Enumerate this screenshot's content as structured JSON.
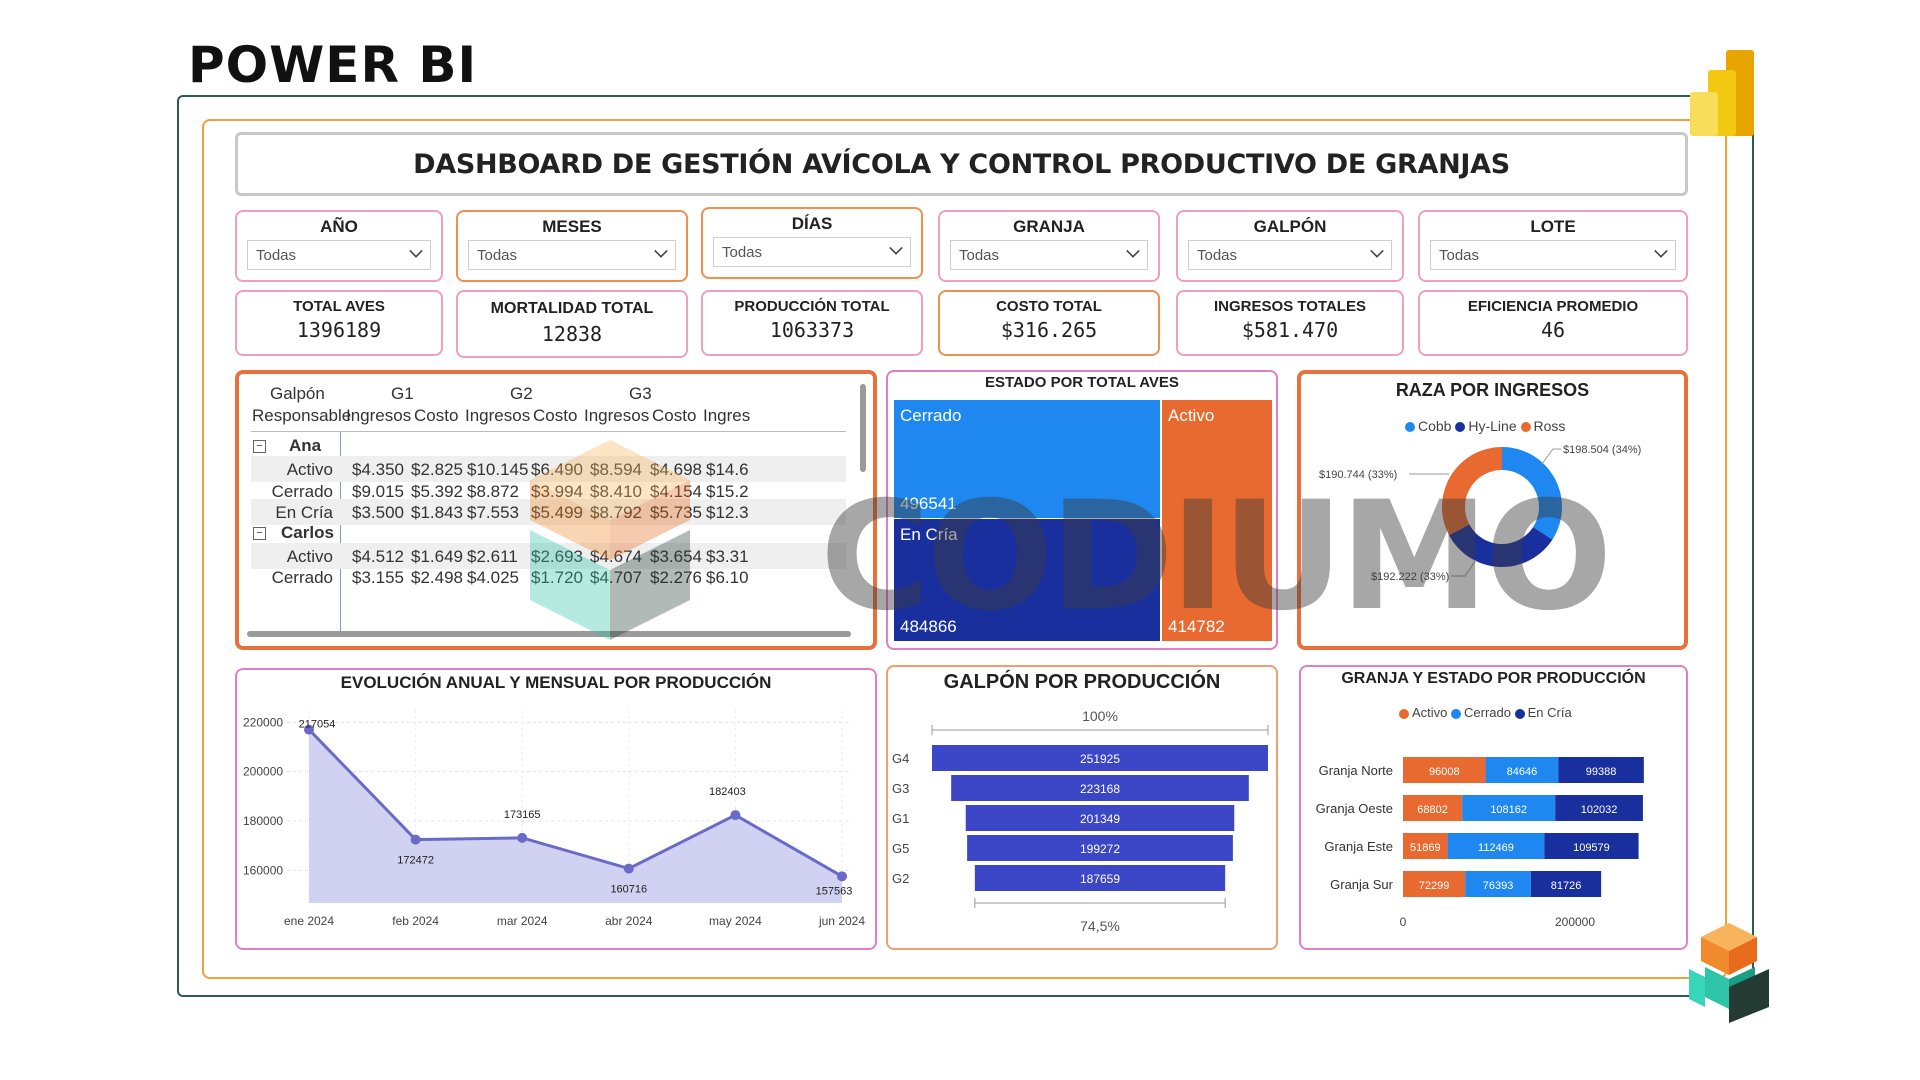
{
  "header": {
    "app_label": "POWER BI"
  },
  "dashboard_title": "DASHBOARD DE GESTIÓN AVÍCOLA Y CONTROL PRODUCTIVO DE GRANJAS",
  "slicers": [
    {
      "title": "AÑO",
      "value": "Todas"
    },
    {
      "title": "MESES",
      "value": "Todas"
    },
    {
      "title": "DÍAS",
      "value": "Todas"
    },
    {
      "title": "GRANJA",
      "value": "Todas"
    },
    {
      "title": "GALPÓN",
      "value": "Todas"
    },
    {
      "title": "LOTE",
      "value": "Todas"
    }
  ],
  "kpis": [
    {
      "title": "TOTAL AVES",
      "value": "1396189"
    },
    {
      "title": "MORTALIDAD TOTAL",
      "value": "12838"
    },
    {
      "title": "PRODUCCIÓN TOTAL",
      "value": "1063373"
    },
    {
      "title": "COSTO TOTAL",
      "value": "$316.265"
    },
    {
      "title": "INGRESOS TOTALES",
      "value": "$581.470"
    },
    {
      "title": "EFICIENCIA PROMEDIO",
      "value": "46"
    }
  ],
  "matrix": {
    "row_header_1": "Galpón",
    "row_header_2": "Responsable",
    "groups": [
      "G1",
      "G2",
      "G3"
    ],
    "sub_headers": [
      "Ingresos",
      "Costo",
      "Ingresos",
      "Costo",
      "Ingresos",
      "Costo",
      "Ingres"
    ],
    "sections": [
      {
        "name": "Ana",
        "expander": "⊟",
        "rows": [
          {
            "label": "Activo",
            "values": [
              "$4.350",
              "$2.825",
              "$10.145",
              "$6.490",
              "$8.594",
              "$4.698",
              "$14.6"
            ]
          },
          {
            "label": "Cerrado",
            "values": [
              "$9.015",
              "$5.392",
              "$8.872",
              "$3.994",
              "$8.410",
              "$4.154",
              "$15.2"
            ]
          },
          {
            "label": "En Cría",
            "values": [
              "$3.500",
              "$1.843",
              "$7.553",
              "$5.499",
              "$8.792",
              "$5.735",
              "$12.3"
            ]
          }
        ]
      },
      {
        "name": "Carlos",
        "expander": "⊟",
        "rows": [
          {
            "label": "Activo",
            "values": [
              "$4.512",
              "$1.649",
              "$2.611",
              "$2.693",
              "$4.674",
              "$3.654",
              "$3.31"
            ]
          },
          {
            "label": "Cerrado",
            "values": [
              "$3.155",
              "$2.498",
              "$4.025",
              "$1.720",
              "$4.707",
              "$2.276",
              "$6.10"
            ]
          }
        ]
      }
    ]
  },
  "treemap": {
    "title": "ESTADO POR TOTAL AVES",
    "items": [
      {
        "label": "Cerrado",
        "value": "496541",
        "color": "#1e88f0"
      },
      {
        "label": "En Cría",
        "value": "484866",
        "color": "#1a2f9e"
      },
      {
        "label": "Activo",
        "value": "414782",
        "color": "#e86a30"
      }
    ]
  },
  "donut": {
    "title": "RAZA POR INGRESOS",
    "legend": [
      {
        "label": "Cobb",
        "color": "#1e88f0"
      },
      {
        "label": "Hy-Line",
        "color": "#1a2f9e"
      },
      {
        "label": "Ross",
        "color": "#e86a30"
      }
    ],
    "labels": [
      "$198.504 (34%)",
      "$190.744 (33%)",
      "$192.222 (33%)"
    ]
  },
  "line": {
    "title": "EVOLUCIÓN ANUAL Y MENSUAL POR PRODUCCIÓN",
    "y_ticks": [
      "220000",
      "200000",
      "180000",
      "160000"
    ],
    "x_labels": [
      "ene 2024",
      "feb 2024",
      "mar 2024",
      "abr 2024",
      "may 2024",
      "jun 2024"
    ],
    "data_labels": [
      "217054",
      "172472",
      "173165",
      "160716",
      "182403",
      "157563"
    ]
  },
  "funnel": {
    "title": "GALPÓN POR PRODUCCIÓN",
    "top_pct": "100%",
    "bottom_pct": "74,5%",
    "categories": [
      "G4",
      "G3",
      "G1",
      "G5",
      "G2"
    ],
    "labels": [
      "251925",
      "223168",
      "201349",
      "199272",
      "187659"
    ],
    "color": "#3b47c7"
  },
  "stacked": {
    "title": "GRANJA Y ESTADO POR PRODUCCIÓN",
    "legend": [
      {
        "label": "Activo",
        "color": "#e86a30"
      },
      {
        "label": "Cerrado",
        "color": "#1e88f0"
      },
      {
        "label": "En Cría",
        "color": "#1a2f9e"
      }
    ],
    "categories": [
      "Granja Norte",
      "Granja Oeste",
      "Granja Este",
      "Granja Sur"
    ],
    "x_ticks": [
      "0",
      "200000"
    ]
  },
  "watermark": "CODIUMO",
  "chart_data": [
    {
      "type": "line",
      "title": "EVOLUCIÓN ANUAL Y MENSUAL POR PRODUCCIÓN",
      "x": [
        "ene 2024",
        "feb 2024",
        "mar 2024",
        "abr 2024",
        "may 2024",
        "jun 2024"
      ],
      "values": [
        217054,
        172472,
        173165,
        160716,
        182403,
        157563
      ],
      "ylim": [
        150000,
        225000
      ]
    },
    {
      "type": "bar",
      "title": "GALPÓN POR PRODUCCIÓN",
      "categories": [
        "G4",
        "G3",
        "G1",
        "G5",
        "G2"
      ],
      "values": [
        251925,
        223168,
        201349,
        199272,
        187659
      ]
    },
    {
      "type": "bar",
      "title": "GRANJA Y ESTADO POR PRODUCCIÓN",
      "categories": [
        "Granja Norte",
        "Granja Oeste",
        "Granja Este",
        "Granja Sur"
      ],
      "series": [
        {
          "name": "Activo",
          "values": [
            96008,
            68802,
            51869,
            72299
          ]
        },
        {
          "name": "Cerrado",
          "values": [
            84646,
            108162,
            112469,
            76393
          ]
        },
        {
          "name": "En Cría",
          "values": [
            99388,
            102032,
            109579,
            81726
          ]
        }
      ]
    },
    {
      "type": "pie",
      "title": "RAZA POR INGRESOS",
      "categories": [
        "Cobb",
        "Hy-Line",
        "Ross"
      ],
      "values": [
        198504,
        192222,
        190744
      ]
    },
    {
      "type": "heatmap",
      "title": "ESTADO POR TOTAL AVES",
      "categories": [
        "Cerrado",
        "En Cría",
        "Activo"
      ],
      "values": [
        496541,
        484866,
        414782
      ]
    }
  ]
}
